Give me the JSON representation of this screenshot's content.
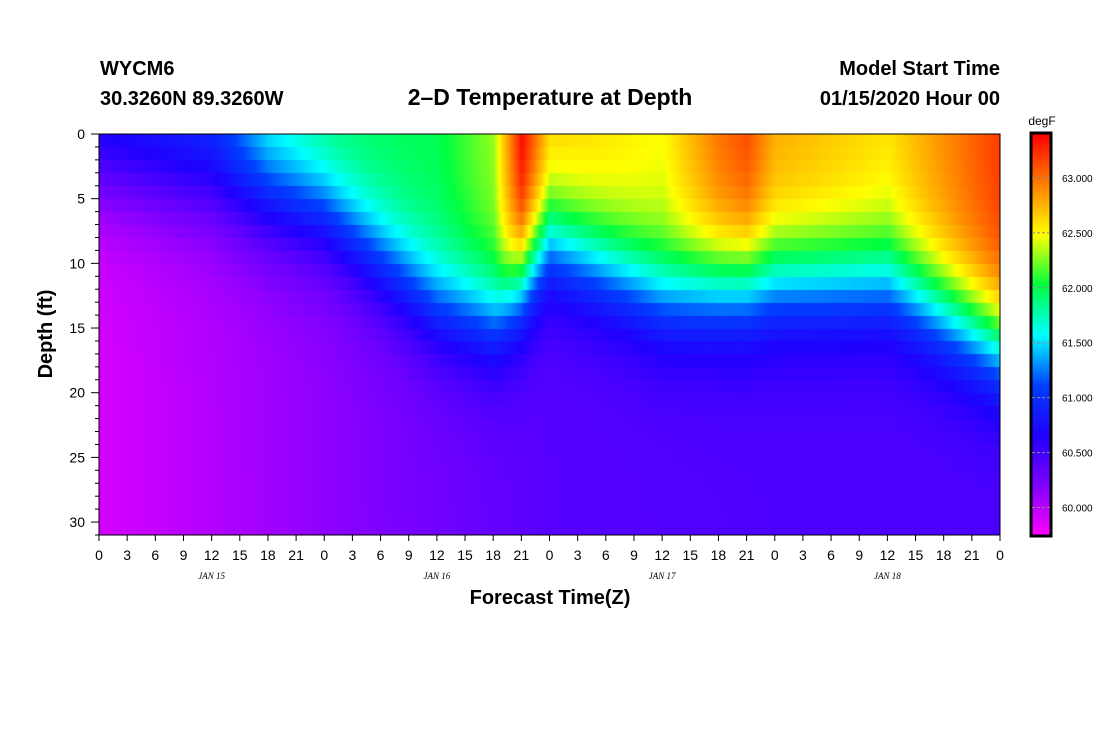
{
  "header": {
    "station": "WYCM6",
    "location": "30.3260N 89.3260W",
    "title": "2–D Temperature at Depth",
    "model_label": "Model Start Time",
    "model_time": "01/15/2020 Hour 00"
  },
  "chart_data": {
    "type": "heatmap",
    "title": "2–D Temperature at Depth",
    "xlabel": "Forecast Time(Z)",
    "ylabel": "Depth (ft)",
    "colorbar_unit": "degF",
    "x_tick_labels": [
      "0",
      "3",
      "6",
      "9",
      "12",
      "15",
      "18",
      "21",
      "0",
      "3",
      "6",
      "9",
      "12",
      "15",
      "18",
      "21",
      "0",
      "3",
      "6",
      "9",
      "12",
      "15",
      "18",
      "21",
      "0",
      "3",
      "6",
      "9",
      "12",
      "15",
      "18",
      "21",
      "0"
    ],
    "x_range_hours": [
      0,
      96
    ],
    "day_labels": [
      {
        "label": "JAN 15",
        "hour": 12
      },
      {
        "label": "JAN 16",
        "hour": 36
      },
      {
        "label": "JAN 17",
        "hour": 60
      },
      {
        "label": "JAN 18",
        "hour": 84
      }
    ],
    "y_ticks": [
      0,
      5,
      10,
      15,
      20,
      25,
      30
    ],
    "y_range": [
      0,
      31
    ],
    "y_inverted": true,
    "colorbar_ticks": [
      "60.000",
      "60.500",
      "61.000",
      "61.500",
      "62.000",
      "62.500",
      "63.000"
    ],
    "color_range": [
      59.75,
      63.4
    ],
    "colormap": [
      "#ff00ff",
      "#8000ff",
      "#2000ff",
      "#0040ff",
      "#00ffff",
      "#00ff40",
      "#ffff00",
      "#ff8000",
      "#ff0000"
    ],
    "surface_temperature_hours": [
      0,
      12,
      18,
      24,
      36,
      42,
      45,
      48,
      60,
      66,
      69,
      72,
      84,
      90,
      96
    ],
    "surface_temperature_degF": [
      60.9,
      61.1,
      61.7,
      61.95,
      62.0,
      62.3,
      63.4,
      62.7,
      62.5,
      63.0,
      63.15,
      62.8,
      62.6,
      62.9,
      63.2
    ],
    "bottom_temperature_hours": [
      0,
      24,
      48,
      72,
      96
    ],
    "bottom_temperature_degF": [
      59.9,
      60.15,
      60.4,
      60.45,
      60.45
    ],
    "thermocline_depth_ft_hours": [
      0,
      12,
      24,
      36,
      42,
      48,
      60,
      72,
      84,
      96
    ],
    "thermocline_depth_ft": [
      3,
      4,
      6,
      13,
      14,
      8,
      12,
      11,
      11,
      16
    ]
  }
}
